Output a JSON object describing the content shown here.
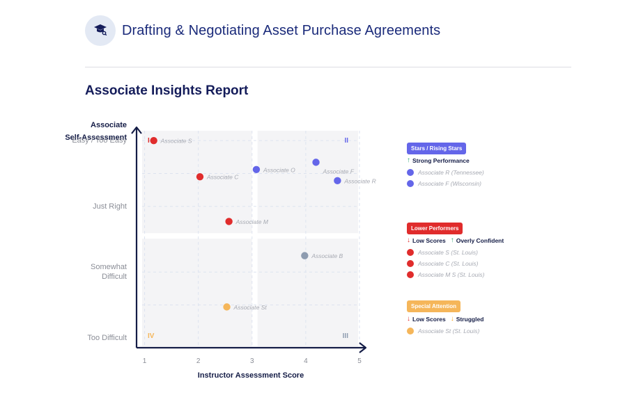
{
  "header": {
    "icon": "graduation-cap-icon",
    "title": "Drafting & Negotiating Asset Purchase Agreements"
  },
  "report_title": "Associate Insights Report",
  "colors": {
    "stars": "#6466e9",
    "lower": "#e02c2c",
    "attention": "#f5b65a",
    "neutral": "#8e9cb0",
    "axis": "#141c46",
    "green_arrow": "#2aa574",
    "red_arrow": "#e02c2c",
    "orange_arrow": "#f5a623"
  },
  "chart_data": {
    "type": "scatter",
    "xlabel": "Instructor Assessment Score",
    "ylabel": [
      "Associate",
      "Self-Assessment"
    ],
    "xlim": [
      0.85,
      5
    ],
    "x_ticks": [
      1,
      2,
      3,
      4,
      5
    ],
    "y_categories": [
      "Too Difficult",
      "Somewhat Difficult",
      "Just Right",
      "Easy / Too Easy"
    ],
    "y_tick_labels": [
      {
        "value": 1.0,
        "lines": [
          "Too Difficult"
        ]
      },
      {
        "value": 2.0,
        "lines": [
          "Somewhat",
          "Difficult"
        ]
      },
      {
        "value": 3.0,
        "lines": [
          "Just Right"
        ]
      },
      {
        "value": 4.0,
        "lines": [
          "Easy / Too Easy"
        ]
      }
    ],
    "ylim": [
      0.85,
      4.15
    ],
    "quadrants": [
      {
        "label": "I",
        "color": "#e02c2c",
        "position": "top-left"
      },
      {
        "label": "II",
        "color": "#6466e9",
        "position": "top-right"
      },
      {
        "label": "III",
        "color": "#8e9cb0",
        "position": "bottom-right"
      },
      {
        "label": "IV",
        "color": "#f5b65a",
        "position": "bottom-left"
      }
    ],
    "divider": {
      "x": 3.05,
      "y": 2.55
    },
    "points": [
      {
        "label": "Associate S",
        "x": 1.17,
        "y": 4.0,
        "group": "lower",
        "label_side": "right"
      },
      {
        "label": "Associate C",
        "x": 2.03,
        "y": 3.45,
        "group": "lower",
        "label_side": "right"
      },
      {
        "label": "Associate M",
        "x": 2.57,
        "y": 2.77,
        "group": "lower",
        "label_side": "right"
      },
      {
        "label": "Associate O",
        "x": 3.08,
        "y": 3.56,
        "group": "stars",
        "label_side": "right"
      },
      {
        "label": "Associate F",
        "x": 4.19,
        "y": 3.67,
        "group": "stars",
        "label_side": "below-right"
      },
      {
        "label": "Associate R",
        "x": 4.59,
        "y": 3.39,
        "group": "stars",
        "label_side": "right"
      },
      {
        "label": "Associate B",
        "x": 3.98,
        "y": 2.25,
        "group": "neutral",
        "label_side": "right"
      },
      {
        "label": "Associate St",
        "x": 2.53,
        "y": 1.47,
        "group": "attention",
        "label_side": "right"
      }
    ]
  },
  "legend": {
    "stars": {
      "pill": "Stars / Rising Stars",
      "headers": [
        {
          "arrow": "up",
          "text": "Strong Performance"
        }
      ],
      "items": [
        "Associate R (Tennessee)",
        "Associate F (Wisconsin)"
      ]
    },
    "lower": {
      "pill": "Lower Performers",
      "headers": [
        {
          "arrow": "down",
          "text": "Low Scores"
        },
        {
          "arrow": "up",
          "text": "Overly Confident"
        }
      ],
      "items": [
        "Associate S (St. Louis)",
        "Associate C (St. Louis)",
        "Associate M S (St. Louis)"
      ]
    },
    "attention": {
      "pill": "Special Attention",
      "headers": [
        {
          "arrow": "down",
          "text": "Low Scores"
        },
        {
          "arrow": "down",
          "text": "Struggled"
        }
      ],
      "items": [
        "Associate St (St. Louis)"
      ]
    }
  }
}
